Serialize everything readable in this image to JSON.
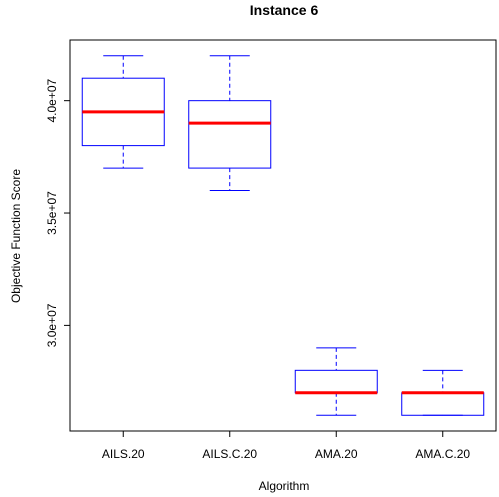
{
  "chart_data": {
    "type": "boxplot",
    "title": "Instance 6",
    "xlabel": "Algorithm",
    "ylabel": "Objective Function Score",
    "categories": [
      "AILS.20",
      "AILS.C.20",
      "AMA.20",
      "AMA.C.20"
    ],
    "boxes": [
      {
        "min": 37000000,
        "q1": 38000000,
        "median": 39500000,
        "q3": 41000000,
        "max": 42000000
      },
      {
        "min": 36000000,
        "q1": 37000000,
        "median": 39000000,
        "q3": 40000000,
        "max": 42000000
      },
      {
        "min": 26000000,
        "q1": 27000000,
        "median": 27000000,
        "q3": 28000000,
        "max": 29000000
      },
      {
        "min": 26000000,
        "q1": 26000000,
        "median": 27000000,
        "q3": 27000000,
        "max": 28000000
      }
    ],
    "yticks": [
      30000000,
      35000000,
      40000000
    ],
    "ytick_labels": [
      "3.0e+07",
      "3.5e+07",
      "4.0e+07"
    ],
    "ylim": [
      25300000,
      42700000
    ],
    "colors": {
      "box": "#0000ff",
      "median": "#ff0000",
      "axis": "#000000"
    },
    "grid": false,
    "legend": "none"
  }
}
